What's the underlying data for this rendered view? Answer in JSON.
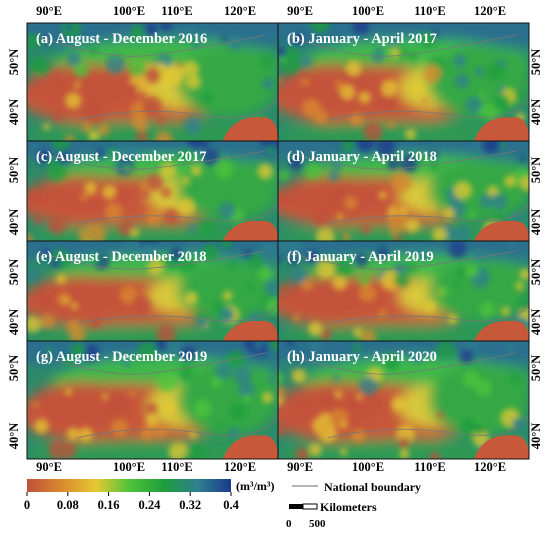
{
  "axes": {
    "lon_ticks": [
      "90°E",
      "100°E",
      "110°E",
      "120°E"
    ],
    "lat_ticks": [
      "50°N",
      "40°N"
    ]
  },
  "panels": [
    {
      "title": "(a) August - December 2016"
    },
    {
      "title": "(b) January - April 2017"
    },
    {
      "title": "(c) August - December 2017"
    },
    {
      "title": "(d) January - April 2018"
    },
    {
      "title": "(e) August - December 2018"
    },
    {
      "title": "(f) January - April 2019"
    },
    {
      "title": "(g) August - December 2019"
    },
    {
      "title": "(h) January - April 2020"
    }
  ],
  "colorbar": {
    "unit": "(m³/m³)",
    "ticks": [
      "0",
      "0.08",
      "0.16",
      "0.24",
      "0.32",
      "0.4"
    ],
    "range": [
      0,
      0.4
    ],
    "stops": [
      "#c0503a",
      "#d98a2e",
      "#e6c832",
      "#4fc43a",
      "#1f9e3c",
      "#2f7f8f",
      "#1a3a8c"
    ]
  },
  "legend": {
    "boundary_label": "National boundary",
    "scale_label": "Kilometers",
    "scale_ticks": [
      "0",
      "500"
    ]
  }
}
